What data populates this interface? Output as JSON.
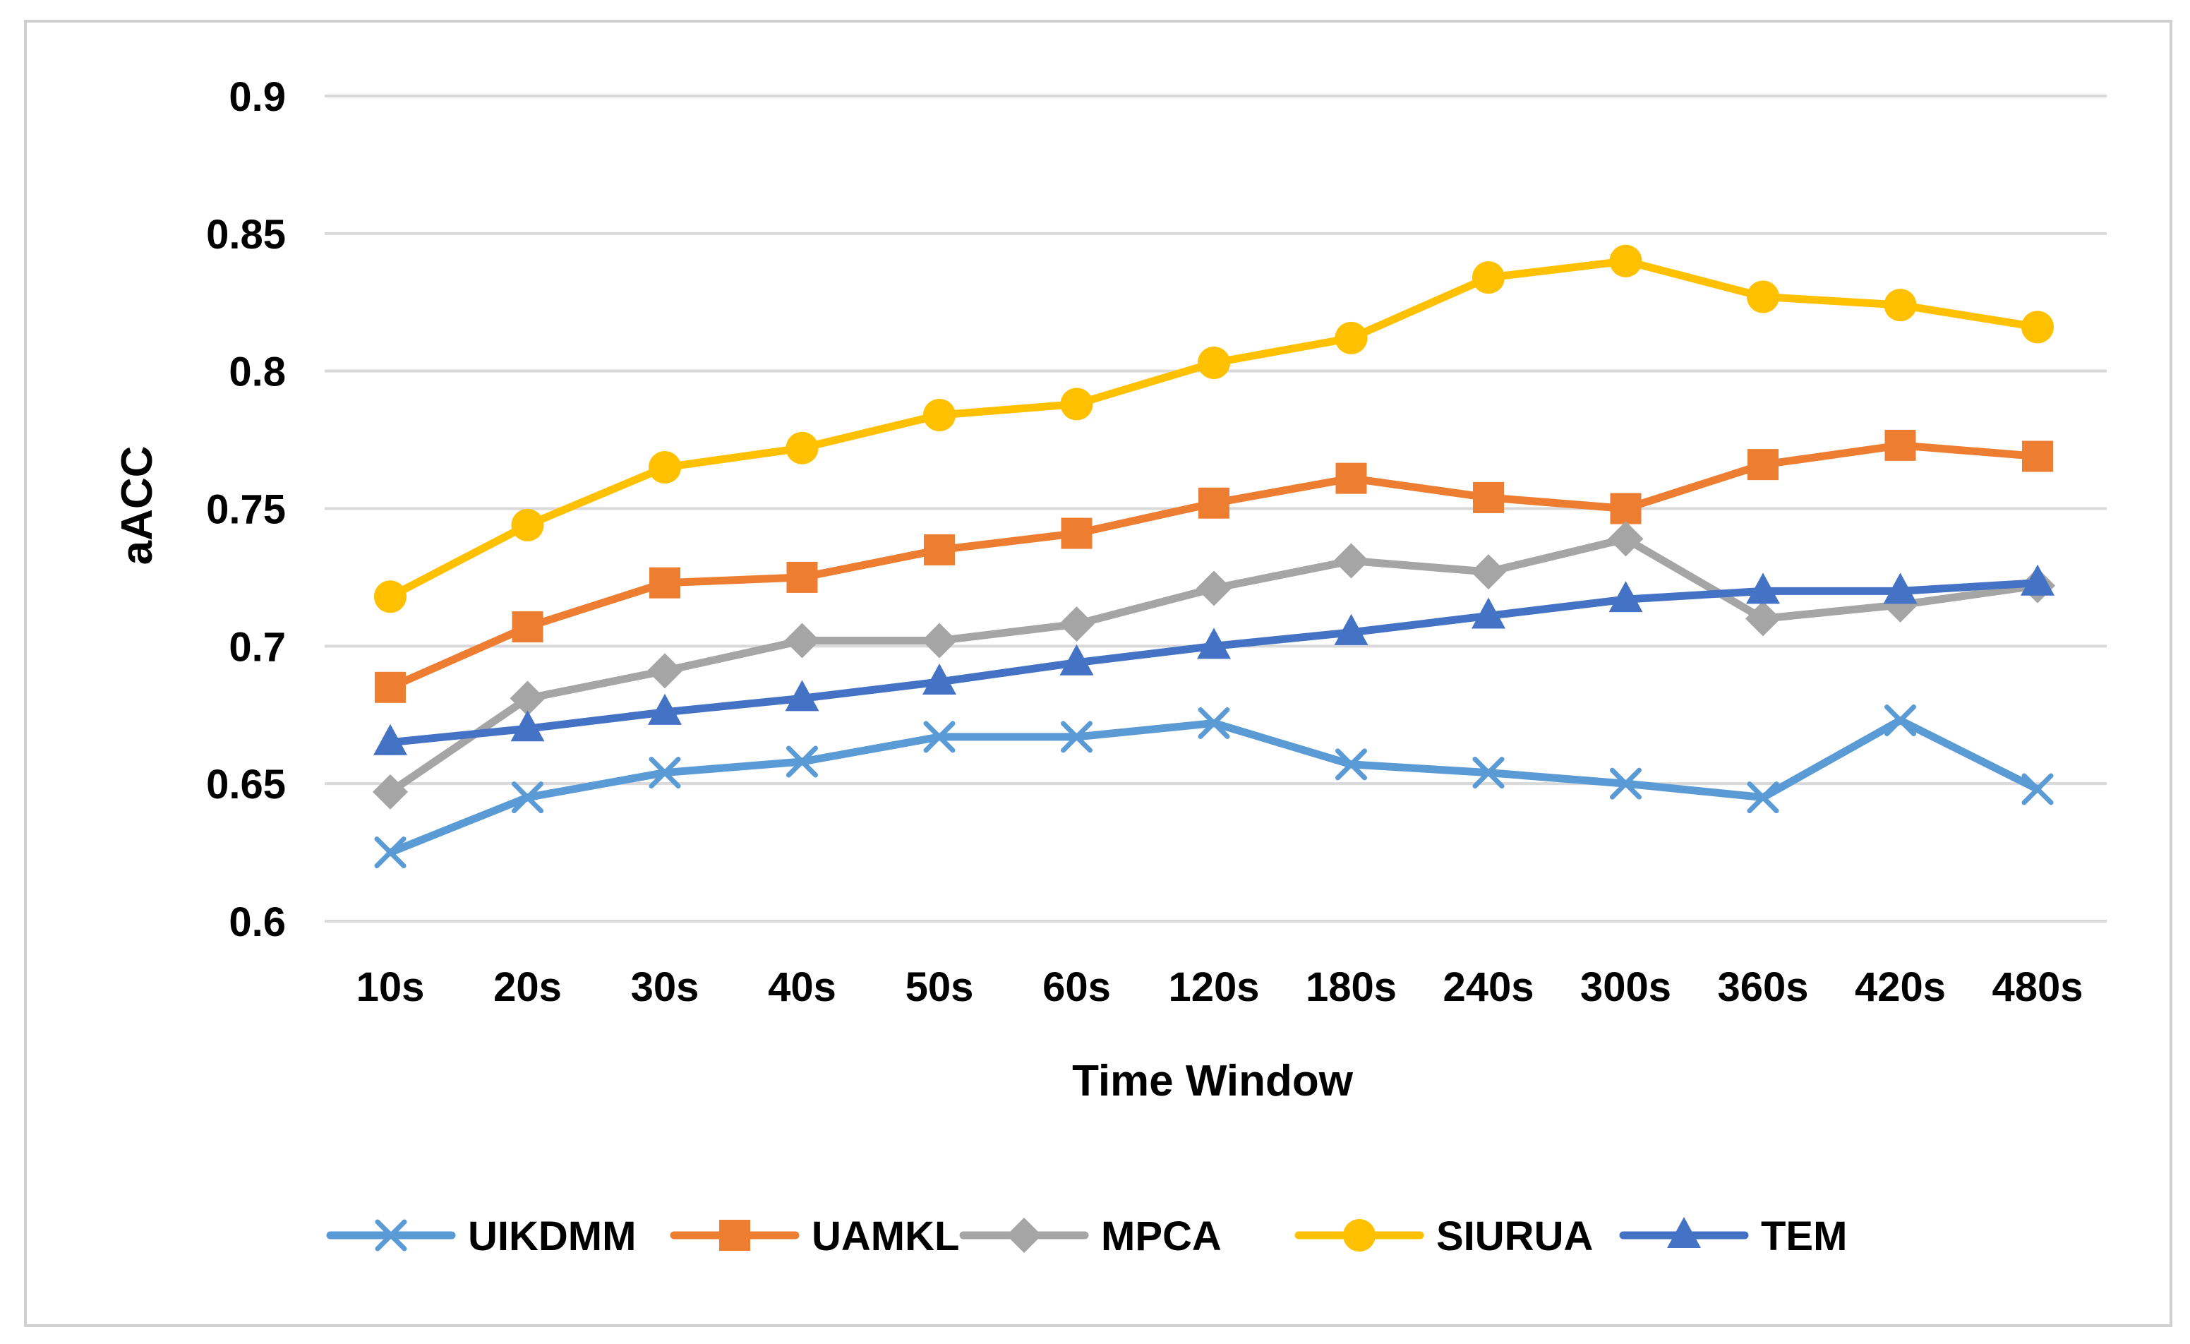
{
  "chart_data": {
    "type": "line",
    "title": "",
    "xlabel": "Time Window",
    "ylabel": "aACC",
    "ylim": [
      0.6,
      0.9
    ],
    "yticks": [
      "0.6",
      "0.65",
      "0.7",
      "0.75",
      "0.8",
      "0.85",
      "0.9"
    ],
    "grid": true,
    "legend_position": "bottom",
    "categories": [
      "10s",
      "20s",
      "30s",
      "40s",
      "50s",
      "60s",
      "120s",
      "180s",
      "240s",
      "300s",
      "360s",
      "420s",
      "480s"
    ],
    "series": [
      {
        "name": "UIKDMM",
        "color": "#5B9BD5",
        "marker": "x",
        "values": [
          0.625,
          0.645,
          0.654,
          0.658,
          0.667,
          0.667,
          0.672,
          0.657,
          0.654,
          0.65,
          0.645,
          0.673,
          0.648
        ]
      },
      {
        "name": "UAMKL",
        "color": "#ED7D31",
        "marker": "square",
        "values": [
          0.685,
          0.707,
          0.723,
          0.725,
          0.735,
          0.741,
          0.752,
          0.761,
          0.754,
          0.75,
          0.766,
          0.773,
          0.769
        ]
      },
      {
        "name": "MPCA",
        "color": "#A5A5A5",
        "marker": "diamond",
        "values": [
          0.647,
          0.681,
          0.691,
          0.702,
          0.702,
          0.708,
          0.721,
          0.731,
          0.727,
          0.739,
          0.71,
          0.715,
          0.722
        ]
      },
      {
        "name": "SIURUA",
        "color": "#FFC000",
        "marker": "circle",
        "values": [
          0.718,
          0.744,
          0.765,
          0.772,
          0.784,
          0.788,
          0.803,
          0.812,
          0.834,
          0.84,
          0.827,
          0.824,
          0.816
        ]
      },
      {
        "name": "TEM",
        "color": "#4472C4",
        "marker": "triangle",
        "values": [
          0.665,
          0.67,
          0.676,
          0.681,
          0.687,
          0.694,
          0.7,
          0.705,
          0.711,
          0.717,
          0.72,
          0.72,
          0.723
        ]
      }
    ]
  }
}
